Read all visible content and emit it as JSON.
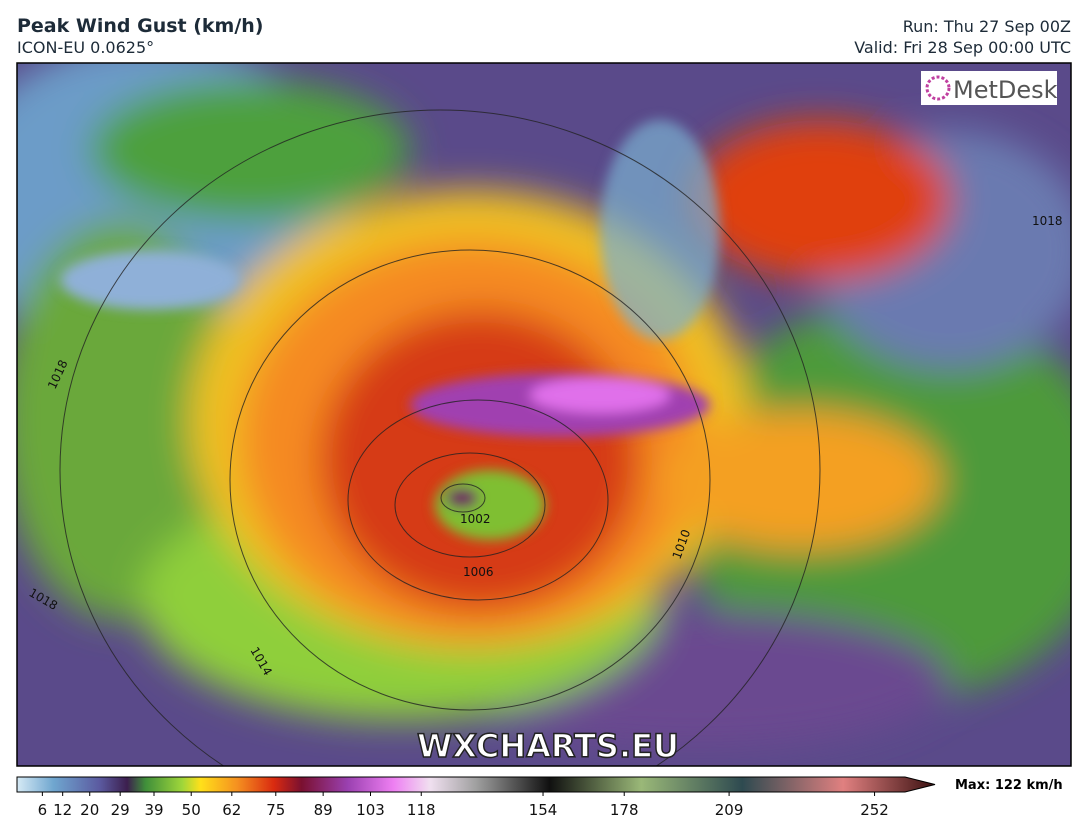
{
  "header": {
    "title": "Peak Wind Gust (km/h)",
    "subtitle": "ICON-EU 0.0625°",
    "run": "Run: Thu 27 Sep 00Z",
    "valid": "Valid: Fri 28 Sep 00:00 UTC"
  },
  "logo": "MetDesk",
  "watermark": "WXCHARTS.EU",
  "isobar_labels": [
    "1002",
    "1006",
    "1010",
    "1014",
    "1018",
    "1018",
    "1018"
  ],
  "colorbar": {
    "lim": [
      -1.5,
      261
    ],
    "ticks": [
      6,
      12,
      20,
      29,
      39,
      50,
      62,
      75,
      89,
      103,
      118,
      154,
      178,
      209,
      252
    ],
    "max_label": "Max: 122 km/h"
  }
}
